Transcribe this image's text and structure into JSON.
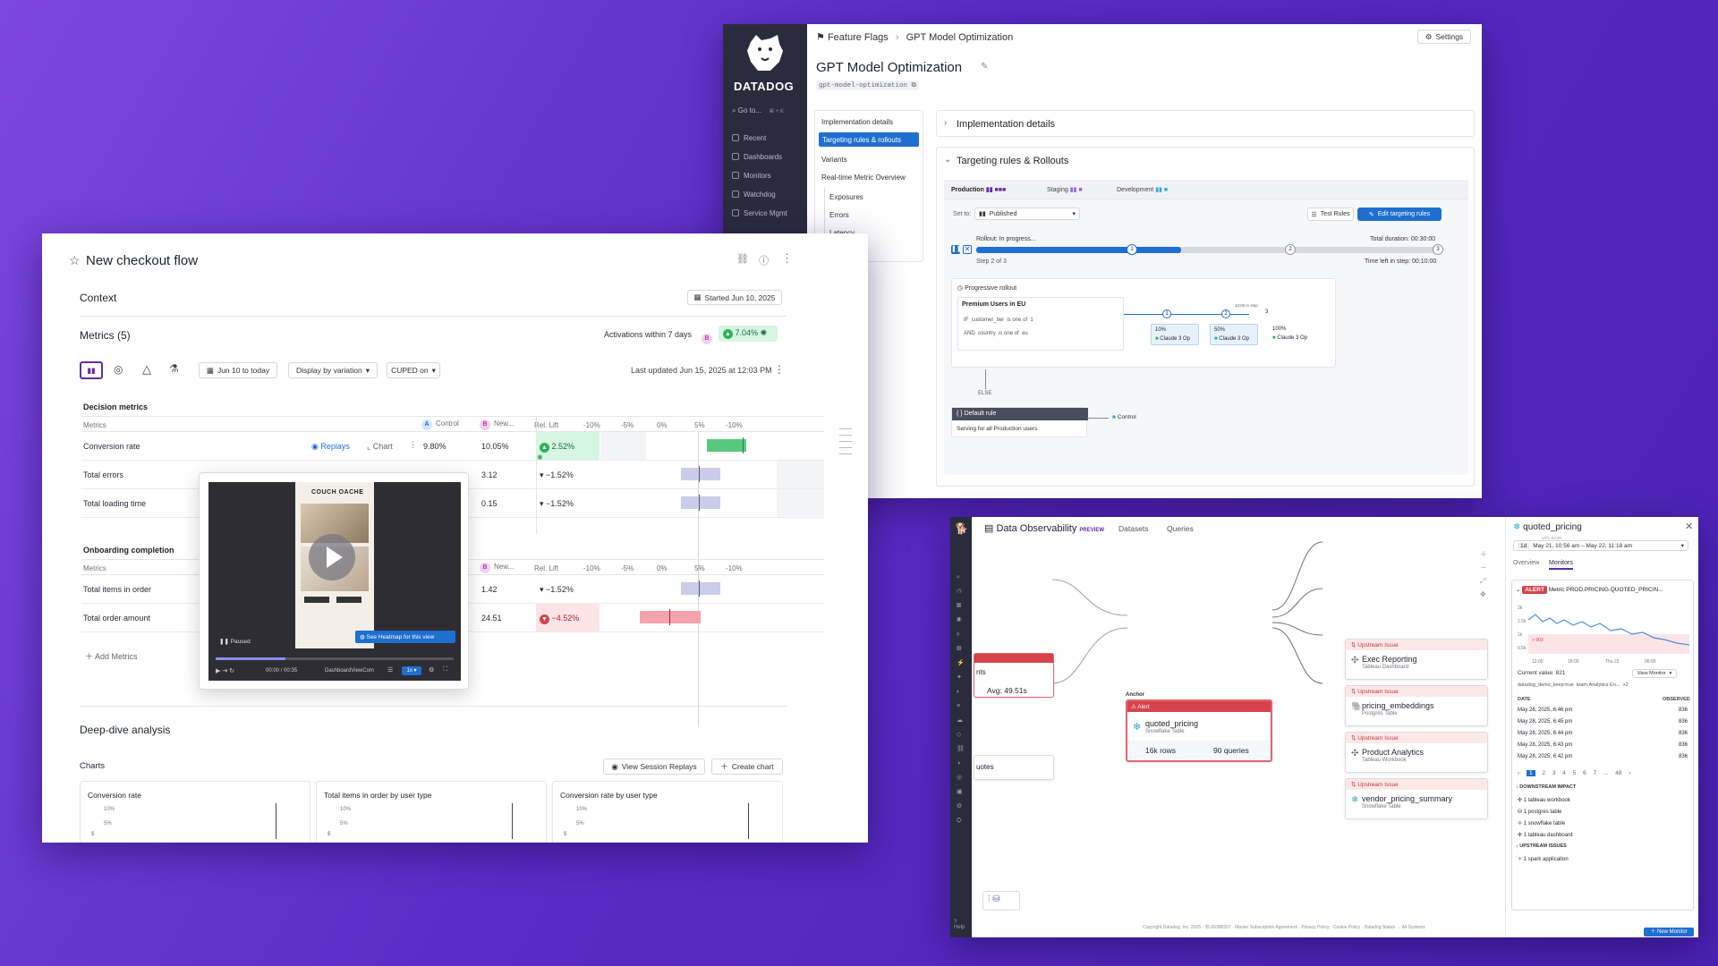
{
  "feature_flags": {
    "brand": "DATADOG",
    "goto": "Go to...",
    "goto_kbd": "⌘ + K",
    "nav": [
      "Recent",
      "Dashboards",
      "Monitors",
      "Watchdog",
      "Service Mgmt"
    ],
    "breadcrumb": [
      "Feature Flags",
      "GPT Model Optimization"
    ],
    "settings": "Settings",
    "title": "GPT Model Optimization",
    "flag_key": "gpt-model-optimization",
    "toc": [
      "Implementation details",
      "Targeting rules & rollouts",
      "Variants",
      "Real-time Metric Overview",
      "Exposures",
      "Errors",
      "Latency"
    ],
    "section_impl": "Implementation details",
    "section_targeting": "Targeting rules & Rollouts",
    "envs": [
      "Production",
      "Staging",
      "Development"
    ],
    "set_to_label": "Set to:",
    "set_to_value": "Published",
    "test_rules": "Test Rules",
    "edit_rules": "Edit targeting rules",
    "rollout_status": "Rollout: In progress...",
    "total_duration": "Total duration: 00:30:00",
    "step": "Step 2 of 3",
    "time_left": "Time left in step: 00:10:00",
    "step_markers": [
      "1",
      "2",
      "3"
    ],
    "progressive": "Progressive rollout",
    "rule_name": "Premium Users in EU",
    "cond1": [
      "IF",
      "customer_tier",
      "is one of",
      "1"
    ],
    "cond2": [
      "AND",
      "country",
      "is one of",
      "eu"
    ],
    "rollout_markers": [
      "1",
      "2",
      "3"
    ],
    "mid_step_label": "10:00 in step",
    "pcts": [
      "10%",
      "50%",
      "100%"
    ],
    "variant": "Claude 3 Op",
    "else": "ELSE",
    "default_rule": "Default rule",
    "default_desc": "Serving for all Production users",
    "control": "Control"
  },
  "checkout": {
    "title": "New checkout flow",
    "context": "Context",
    "started": "Started Jun 10, 2025",
    "metrics_title": "Metrics (5)",
    "activations": "Activations within 7 days",
    "activation_badge": "B",
    "activation_pct": "7.04%",
    "date_range": "Jun 10 to today",
    "display": "Display by variation",
    "cuped": "CUPED on",
    "last_updated": "Last updated Jun 15, 2025 at 12:03 PM",
    "decision_metrics": "Decision metrics",
    "col_metrics": "Metrics",
    "col_control": "Control",
    "col_new": "New...",
    "col_lift": "Rel. Lift",
    "scale": [
      "-10%",
      "-5%",
      "0%",
      "5%",
      "-10%"
    ],
    "replays": "Replays",
    "chart": "Chart",
    "rows1": [
      {
        "name": "Conversion rate",
        "control": "9.80%",
        "new": "10.05%",
        "lift": "2.52%",
        "lift_value": 2.52
      },
      {
        "name": "Total errors",
        "control": "",
        "new": "3.12",
        "lift": "−1.52%",
        "lift_value": -1.52
      },
      {
        "name": "Total loading time",
        "control": "",
        "new": "0.15",
        "lift": "−1.52%",
        "lift_value": -1.52
      }
    ],
    "onboarding": "Onboarding completion",
    "rows2": [
      {
        "name": "Total items in order",
        "new": "1.42",
        "lift": "−1.52%",
        "lift_value": -1.52
      },
      {
        "name": "Total order amount",
        "new": "24.51",
        "lift": "−4.52%",
        "lift_value": -4.52
      }
    ],
    "add_metrics": "Add Metrics",
    "video": {
      "brand": "COUCH OACHE",
      "paused": "Paused",
      "heatmap": "See Heatmap for this view",
      "time": "00:00 / 00:35",
      "view": "DashboardViewCom",
      "speed": "1x"
    },
    "deep_dive": "Deep-dive analysis",
    "charts": "Charts",
    "view_replays": "View Session Replays",
    "create_chart": "Create chart",
    "chart_titles": [
      "Conversion rate",
      "Total items in order by user type",
      "Conversion rate by user type"
    ],
    "chart_ticks": [
      "10%",
      "5%"
    ],
    "chart_axis": "$"
  },
  "observability": {
    "title": "Data Observability",
    "preview": "PREVIEW",
    "tabs": [
      "Datasets",
      "Queries"
    ],
    "left_node_label": "nts",
    "left_node_avg": "Avg: 49.51s",
    "left_node2": "uotes",
    "anchor": "Anchor",
    "alert": "Alert",
    "center_name": "quoted_pricing",
    "center_type": "Snowflake Table",
    "center_rows": "16k rows",
    "center_queries": "90 queries",
    "upstream_label": "Upstream Issue",
    "targets": [
      {
        "name": "Exec Reporting",
        "type": "Tableau Dashboard"
      },
      {
        "name": "pricing_embeddings",
        "type": "Postgres Table"
      },
      {
        "name": "Product Analytics",
        "type": "Tableau Workbook"
      },
      {
        "name": "vendor_pricing_summary",
        "type": "Snowflake Table"
      }
    ],
    "footer": "Copyright Datadog, Inc. 2025 · 35.66386557 · Master Subscription Agreement · Privacy Policy · Cookie Policy · Datadog Status → All Systems",
    "help": "Help",
    "panel": {
      "title": "quoted_pricing",
      "range_small": "UTC-04:00",
      "range_badge": "1d",
      "range": "May 21, 10:56 am – May 22, 11:18 am",
      "tabs": [
        "Overview",
        "Monitors"
      ],
      "alert": "ALERT",
      "metric": "Metric PROD.PRICING.QUOTED_PRICIN...",
      "y_ticks": [
        "2k",
        "1.5k",
        "1k",
        "0.5k"
      ],
      "x_ticks": [
        "12:00",
        "18:00",
        "Thu 22",
        "06:00"
      ],
      "threshold": "> 903",
      "current_value": "Current value:",
      "current_num": "821",
      "view_monitor": "View Monitor",
      "tags": [
        "datadog_demo_keep:true",
        "team:Analytics En...",
        "+2"
      ],
      "col_date": "DATE",
      "col_observed": "OBSERVED",
      "rows": [
        {
          "date": "May 28, 2025, 6:46 pm",
          "val": "836"
        },
        {
          "date": "May 28, 2025, 6:45 pm",
          "val": "836"
        },
        {
          "date": "May 28, 2025, 6:44 pm",
          "val": "836"
        },
        {
          "date": "May 28, 2025, 6:43 pm",
          "val": "836"
        },
        {
          "date": "May 28, 2025, 6:42 pm",
          "val": "836"
        }
      ],
      "pages": [
        "1",
        "2",
        "3",
        "4",
        "5",
        "6",
        "7",
        "...",
        "48"
      ],
      "downstream": "DOWNSTREAM IMPACT",
      "downstream_items": [
        "1 tableau workbook",
        "1 postgres table",
        "1 snowflake table",
        "1 tableau dashboard"
      ],
      "upstream": "UPSTREAM ISSUES",
      "upstream_items": [
        "1 spark application"
      ],
      "new_monitor": "New Monitor"
    }
  },
  "colors": {
    "accent": "#632ca6",
    "blue": "#1f6fd0",
    "green": "#2fb15b",
    "red": "#d6434b",
    "pink": "#f4a3ad"
  }
}
